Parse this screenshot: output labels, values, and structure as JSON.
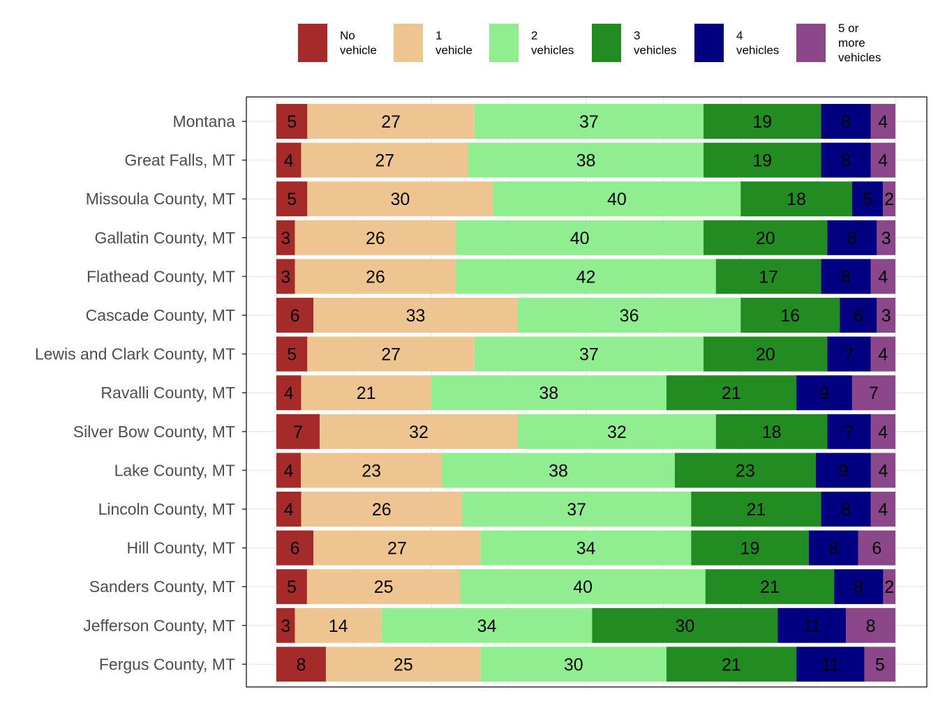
{
  "chart_data": {
    "type": "bar",
    "orientation": "horizontal",
    "stacked": "percent",
    "title": "",
    "xlabel": "",
    "ylabel": "",
    "grid": true,
    "legend_position": "top",
    "categories": [
      "Montana",
      "Great Falls, MT",
      "Missoula County, MT",
      "Gallatin County, MT",
      "Flathead County, MT",
      "Cascade County, MT",
      "Lewis and Clark County, MT",
      "Ravalli County, MT",
      "Silver Bow County, MT",
      "Lake County, MT",
      "Lincoln County, MT",
      "Hill County, MT",
      "Sanders County, MT",
      "Jefferson County, MT",
      "Fergus County, MT"
    ],
    "series": [
      {
        "name": "No vehicle",
        "legend_lines": [
          "No",
          "vehicle"
        ],
        "color": "#A52A2A",
        "values": [
          5,
          4,
          5,
          3,
          3,
          6,
          5,
          4,
          7,
          4,
          4,
          6,
          5,
          3,
          8
        ]
      },
      {
        "name": "1 vehicle",
        "legend_lines": [
          "1",
          "vehicle"
        ],
        "color": "#EEC591",
        "values": [
          27,
          27,
          30,
          26,
          26,
          33,
          27,
          21,
          32,
          23,
          26,
          27,
          25,
          14,
          25
        ]
      },
      {
        "name": "2 vehicles",
        "legend_lines": [
          "2",
          "vehicles"
        ],
        "color": "#90EE90",
        "values": [
          37,
          38,
          40,
          40,
          42,
          36,
          37,
          38,
          32,
          38,
          37,
          34,
          40,
          34,
          30
        ]
      },
      {
        "name": "3 vehicles",
        "legend_lines": [
          "3",
          "vehicles"
        ],
        "color": "#228B22",
        "values": [
          19,
          19,
          18,
          20,
          17,
          16,
          20,
          21,
          18,
          23,
          21,
          19,
          21,
          30,
          21
        ]
      },
      {
        "name": "4 vehicles",
        "legend_lines": [
          "4",
          "vehicles"
        ],
        "color": "#000080",
        "values": [
          8,
          8,
          5,
          8,
          8,
          6,
          7,
          9,
          7,
          9,
          8,
          8,
          8,
          11,
          11
        ]
      },
      {
        "name": "5 or more vehicles",
        "legend_lines": [
          "5 or",
          "more",
          "vehicles"
        ],
        "color": "#8B4789",
        "values": [
          4,
          4,
          2,
          3,
          4,
          3,
          4,
          7,
          4,
          4,
          4,
          6,
          2,
          8,
          5
        ]
      }
    ]
  }
}
